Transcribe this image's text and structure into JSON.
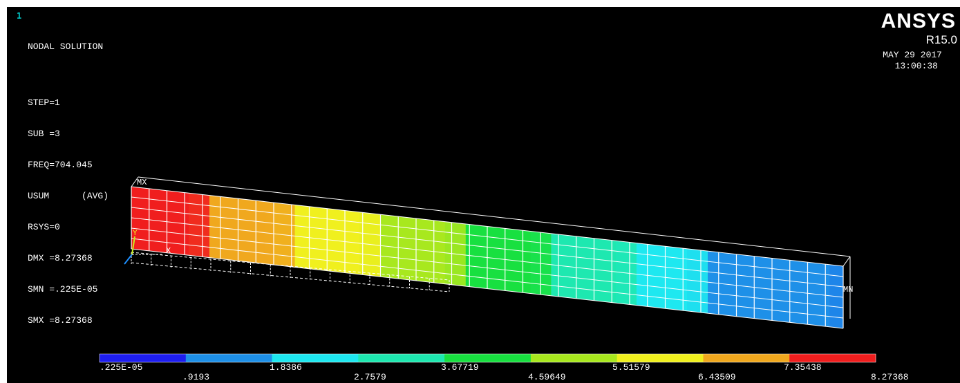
{
  "window_number": "1",
  "plot": {
    "title": "NODAL SOLUTION",
    "lines": [
      "STEP=1",
      "SUB =3",
      "FREQ=704.045",
      "USUM      (AVG)",
      "RSYS=0",
      "DMX =8.27368",
      "SMN =.225E-05",
      "SMX =8.27368"
    ]
  },
  "brand": {
    "name": "ANSYS",
    "release": "R15.0",
    "date": "MAY 29 2017",
    "time": "13:00:38"
  },
  "markers": {
    "max": "MX",
    "min": "MN"
  },
  "triad": {
    "x_label": "X",
    "y_label": "Y"
  },
  "legend": {
    "colors": [
      "#1e1ef0",
      "#1e90e8",
      "#1ee8f0",
      "#1ee8b0",
      "#18e040",
      "#a8e81e",
      "#f0f01e",
      "#f0a81e",
      "#f01e1e"
    ],
    "labels_top": [
      ".225E-05",
      "1.8386",
      "3.67719",
      "5.51579",
      "7.35438"
    ],
    "labels_bottom": [
      ".9193",
      "2.7579",
      "4.59649",
      "6.43509",
      "8.27368"
    ]
  },
  "chart_data": {
    "type": "heatmap",
    "title": "NODAL SOLUTION",
    "quantity": "USUM",
    "bands": [
      {
        "from": 2.25e-06,
        "to": 0.9193
      },
      {
        "from": 0.9193,
        "to": 1.8386
      },
      {
        "from": 1.8386,
        "to": 2.7579
      },
      {
        "from": 2.7579,
        "to": 3.67719
      },
      {
        "from": 3.67719,
        "to": 4.59649
      },
      {
        "from": 4.59649,
        "to": 5.51579
      },
      {
        "from": 5.51579,
        "to": 6.43509
      },
      {
        "from": 6.43509,
        "to": 7.35438
      },
      {
        "from": 7.35438,
        "to": 8.27368
      }
    ],
    "min": 2.25e-06,
    "max": 8.27368
  }
}
